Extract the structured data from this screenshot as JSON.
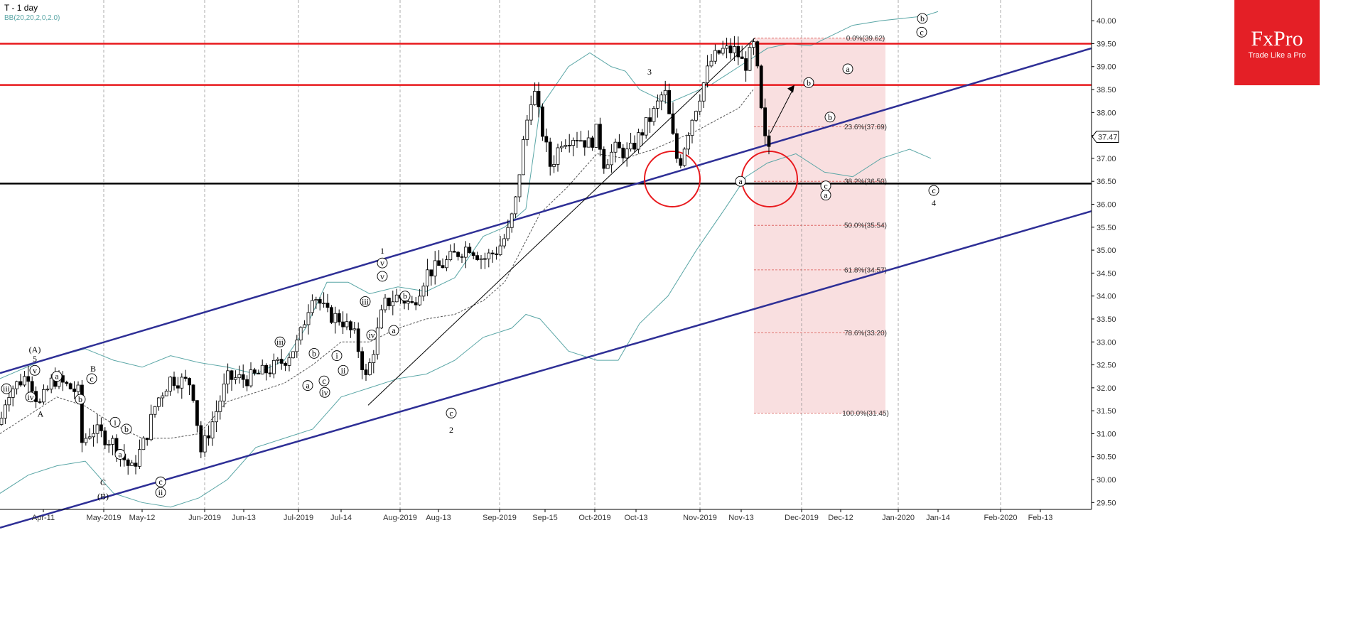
{
  "title": "T  - 1 day",
  "indicator": "BB(20,20,2,0,2.0)",
  "logo": {
    "brand": "FxPro",
    "tagline": "Trade Like a Pro"
  },
  "colors": {
    "resistance": "#e8191d",
    "support": "#000000",
    "channel": "#2e2f96",
    "bollinger": "#5aa6a6",
    "bull": "#ffffff",
    "bear": "#000000",
    "fib": "#d9534f",
    "fib_zone": "#f9dfe0"
  },
  "chart_data": {
    "type": "candlestick",
    "y_range": [
      29.35,
      40.25
    ],
    "y_ticks": [
      "29.50",
      "30.00",
      "30.50",
      "31.00",
      "31.50",
      "32.00",
      "32.50",
      "33.00",
      "33.50",
      "34.00",
      "34.50",
      "35.00",
      "35.50",
      "36.00",
      "36.50",
      "37.00",
      "37.50",
      "38.00",
      "38.50",
      "39.00",
      "39.50",
      "40.00"
    ],
    "x_ticks": [
      "Apr-11",
      "May-2019",
      "May-12",
      "Jun-2019",
      "Jun-13",
      "Jul-2019",
      "Jul-14",
      "Aug-2019",
      "Aug-13",
      "Sep-2019",
      "Sep-15",
      "Oct-2019",
      "Oct-13",
      "Nov-2019",
      "Nov-13",
      "Dec-2019",
      "Dec-12",
      "Jan-2020",
      "Jan-14",
      "Feb-2020",
      "Feb-13"
    ],
    "last_price": "37.47",
    "resistance_levels": [
      39.5,
      38.6
    ],
    "support_level": 36.45,
    "fibonacci": [
      {
        "label": "0.0%(39.62)",
        "value": 39.62
      },
      {
        "label": "23.6%(37.69)",
        "value": 37.69
      },
      {
        "label": "38.2%(36.50)",
        "value": 36.5
      },
      {
        "label": "50.0%(35.54)",
        "value": 35.54
      },
      {
        "label": "61.8%(34.57)",
        "value": 34.57
      },
      {
        "label": "78.6%(33.20)",
        "value": 33.2
      },
      {
        "label": "100.0%(31.45)",
        "value": 31.45
      }
    ],
    "wave_labels": [
      {
        "text": "(A)",
        "x": 49,
        "price": 32.85,
        "circled": false,
        "size": 18
      },
      {
        "text": "5",
        "x": 49,
        "price": 32.65,
        "circled": false,
        "size": 16
      },
      {
        "text": "v",
        "x": 49,
        "price": 32.38,
        "circled": true
      },
      {
        "text": "iii",
        "x": 9,
        "price": 31.98,
        "circled": true
      },
      {
        "text": "iv",
        "x": 43,
        "price": 31.8,
        "circled": true
      },
      {
        "text": "A",
        "x": 57,
        "price": 31.45,
        "circled": false,
        "size": 16
      },
      {
        "text": "a",
        "x": 80,
        "price": 32.25,
        "circled": true
      },
      {
        "text": "b",
        "x": 113,
        "price": 31.75,
        "circled": true
      },
      {
        "text": "B",
        "x": 131,
        "price": 32.43,
        "circled": false,
        "size": 16
      },
      {
        "text": "c",
        "x": 129,
        "price": 32.2,
        "circled": true
      },
      {
        "text": "i",
        "x": 162,
        "price": 31.25,
        "circled": true
      },
      {
        "text": "b",
        "x": 178,
        "price": 31.1,
        "circled": true
      },
      {
        "text": "a",
        "x": 169,
        "price": 30.55,
        "circled": true
      },
      {
        "text": "c",
        "x": 226,
        "price": 29.95,
        "circled": true
      },
      {
        "text": "ii",
        "x": 226,
        "price": 29.72,
        "circled": true
      },
      {
        "text": "C",
        "x": 145,
        "price": 29.95,
        "circled": false,
        "size": 16
      },
      {
        "text": "(B)",
        "x": 145,
        "price": 29.65,
        "circled": false,
        "size": 18
      },
      {
        "text": "iii",
        "x": 394,
        "price": 33.0,
        "circled": true
      },
      {
        "text": "b",
        "x": 442,
        "price": 32.75,
        "circled": true
      },
      {
        "text": "a",
        "x": 433,
        "price": 32.05,
        "circled": true
      },
      {
        "text": "i",
        "x": 474,
        "price": 32.7,
        "circled": true
      },
      {
        "text": "c",
        "x": 456,
        "price": 32.15,
        "circled": true
      },
      {
        "text": "iv",
        "x": 457,
        "price": 31.9,
        "circled": true
      },
      {
        "text": "ii",
        "x": 483,
        "price": 32.38,
        "circled": true
      },
      {
        "text": "1",
        "x": 538,
        "price": 35.0,
        "circled": false,
        "size": 16
      },
      {
        "text": "v",
        "x": 538,
        "price": 34.72,
        "circled": true
      },
      {
        "text": "v",
        "x": 538,
        "price": 34.43,
        "circled": true
      },
      {
        "text": "iii",
        "x": 514,
        "price": 33.88,
        "circled": true
      },
      {
        "text": "iv",
        "x": 523,
        "price": 33.15,
        "circled": true
      },
      {
        "text": "b",
        "x": 570,
        "price": 34.0,
        "circled": true
      },
      {
        "text": "a",
        "x": 554,
        "price": 33.25,
        "circled": true
      },
      {
        "text": "c",
        "x": 635,
        "price": 31.45,
        "circled": true
      },
      {
        "text": "2",
        "x": 635,
        "price": 31.1,
        "circled": false,
        "size": 16
      },
      {
        "text": "3",
        "x": 914,
        "price": 38.9,
        "circled": false,
        "size": 16
      },
      {
        "text": "a",
        "x": 1042,
        "price": 36.5,
        "circled": true
      },
      {
        "text": "b",
        "x": 1138,
        "price": 38.65,
        "circled": true
      },
      {
        "text": "a",
        "x": 1193,
        "price": 38.95,
        "circled": true
      },
      {
        "text": "b",
        "x": 1168,
        "price": 37.9,
        "circled": true
      },
      {
        "text": "c",
        "x": 1162,
        "price": 36.4,
        "circled": true
      },
      {
        "text": "a",
        "x": 1162,
        "price": 36.2,
        "circled": true
      },
      {
        "text": "c",
        "x": 1297,
        "price": 39.75,
        "circled": true
      },
      {
        "text": "b",
        "x": 1298,
        "price": 40.05,
        "circled": true
      },
      {
        "text": "c",
        "x": 1314,
        "price": 36.3,
        "circled": true
      },
      {
        "text": "4",
        "x": 1314,
        "price": 36.05,
        "circled": false,
        "size": 16
      }
    ]
  }
}
